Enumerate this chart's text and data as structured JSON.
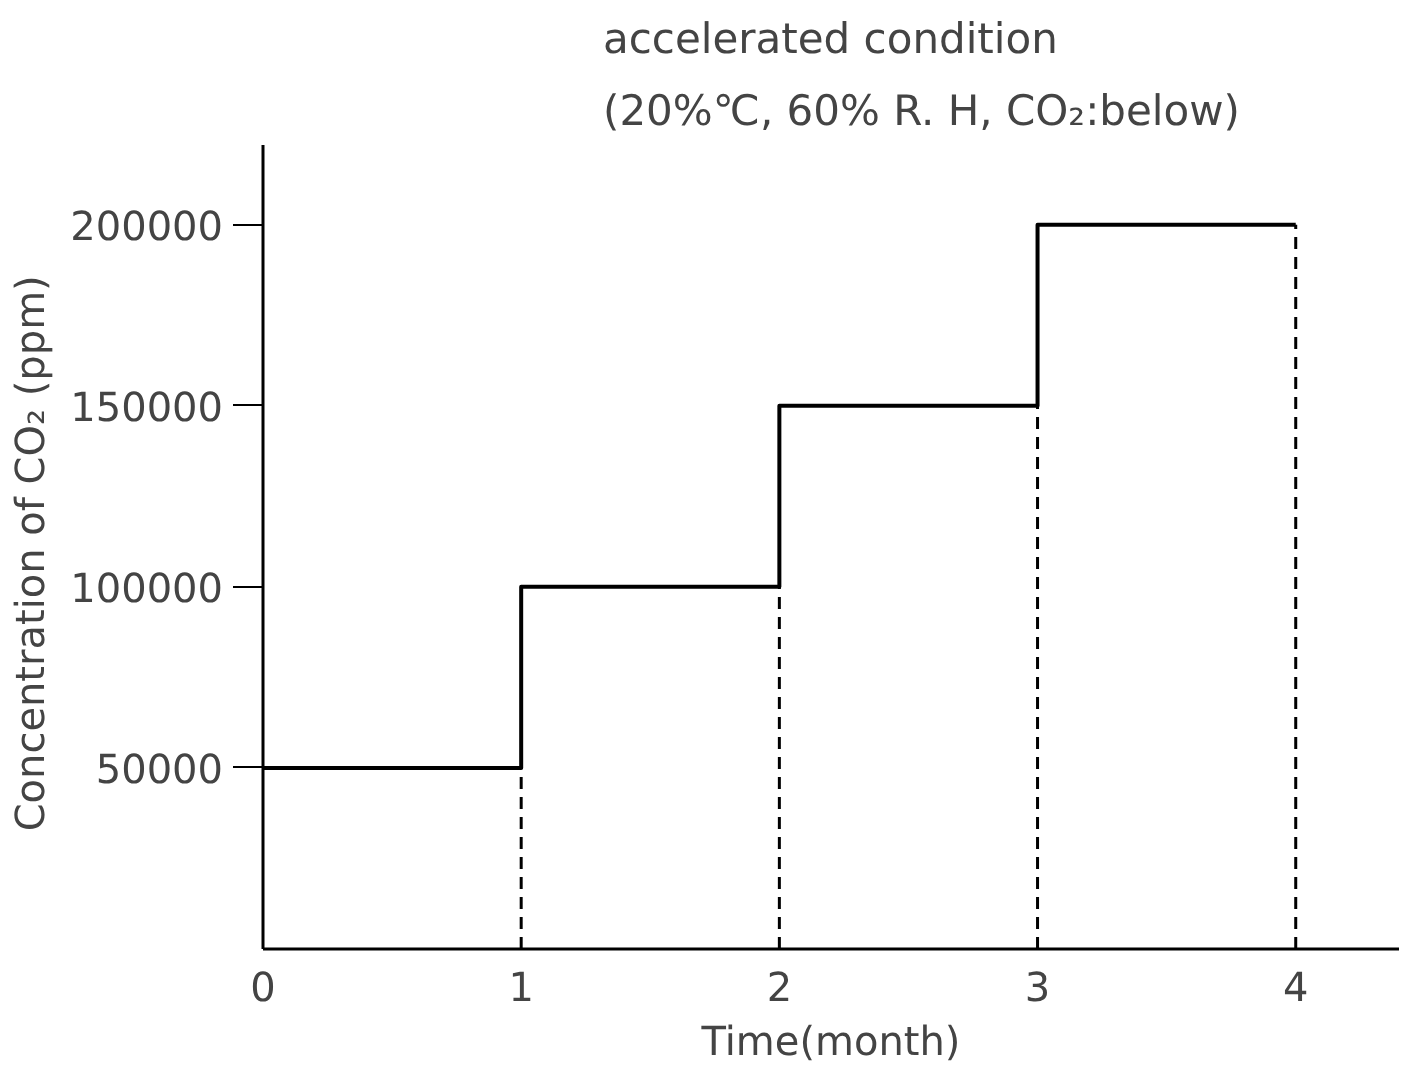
{
  "chart_data": {
    "type": "step",
    "title": "accelerated condition",
    "subtitle": "(20%℃,  60% R. H, CO₂:below)",
    "xlabel": "Time(month)",
    "ylabel": "Concentration of CO₂  (ppm)",
    "x": [
      0,
      1,
      2,
      3,
      4
    ],
    "series": [
      {
        "color": "#000000",
        "values": [
          50000,
          100000,
          150000,
          200000,
          200000
        ]
      }
    ],
    "ref_lines": [
      {
        "axis": "x",
        "value": 1,
        "line_style": "dashed",
        "color": "#000000"
      },
      {
        "axis": "x",
        "value": 2,
        "line_style": "dashed",
        "color": "#000000"
      },
      {
        "axis": "x",
        "value": 3,
        "line_style": "dashed",
        "color": "#000000"
      },
      {
        "axis": "x",
        "value": 4,
        "line_style": "dashed",
        "color": "#000000"
      }
    ],
    "xlim": [
      0,
      4.4
    ],
    "xticks": [
      0,
      1,
      2,
      3,
      4
    ],
    "ylim": [
      0,
      222000
    ],
    "yticks": [
      50000,
      100000,
      150000,
      200000
    ],
    "grid": false,
    "marker": "none",
    "line_style": "solid"
  }
}
